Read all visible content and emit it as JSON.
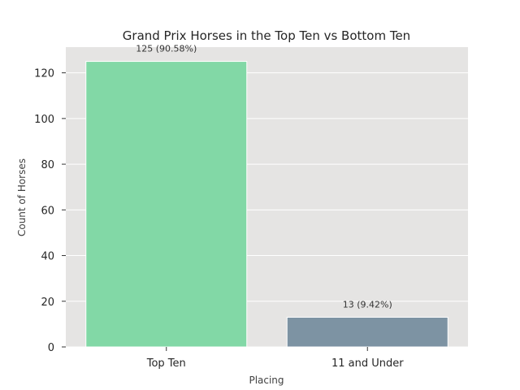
{
  "chart_data": {
    "type": "bar",
    "title": "Grand Prix Horses in the Top Ten vs Bottom Ten",
    "xlabel": "Placing",
    "ylabel": "Count of Horses",
    "categories": [
      "Top Ten",
      "11 and Under"
    ],
    "values": [
      125,
      13
    ],
    "data_labels": [
      "125 (90.58%)",
      "13 (9.42%)"
    ],
    "bar_colors": [
      "#82d8a6",
      "#7d93a3"
    ],
    "ylim": [
      0,
      131.25
    ],
    "yticks": [
      0,
      20,
      40,
      60,
      80,
      100,
      120
    ],
    "grid": true,
    "plot_background": "#e5e4e3",
    "grid_color": "#ffffff"
  }
}
